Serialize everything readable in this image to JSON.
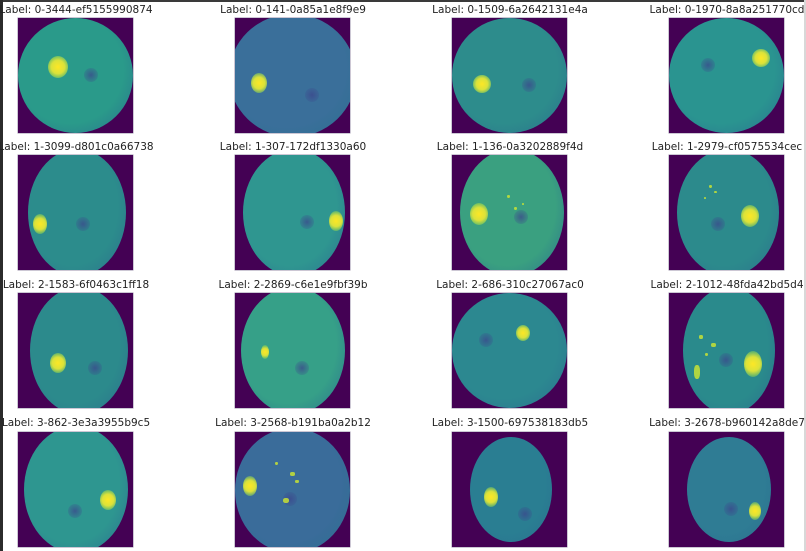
{
  "figure": {
    "rows": 4,
    "cols": 4,
    "colormap": "viridis",
    "background_color": "#440154",
    "title_prefix": "Label: "
  },
  "panels": [
    {
      "label": "Label: 0-3444-ef5155990874",
      "grade": 0,
      "disc_side": "left"
    },
    {
      "label": "Label: 0-141-0a85a1e8f9e9",
      "grade": 0,
      "disc_side": "left"
    },
    {
      "label": "Label: 0-1509-6a2642131e4a",
      "grade": 0,
      "disc_side": "left"
    },
    {
      "label": "Label: 0-1970-8a8a251770cd",
      "grade": 0,
      "disc_side": "right"
    },
    {
      "label": "Label: 1-3099-d801c0a66738",
      "grade": 1,
      "disc_side": "left"
    },
    {
      "label": "Label: 1-307-172df1330a60",
      "grade": 1,
      "disc_side": "right"
    },
    {
      "label": "Label: 1-136-0a3202889f4d",
      "grade": 1,
      "disc_side": "left"
    },
    {
      "label": "Label: 1-2979-cf0575534cec",
      "grade": 1,
      "disc_side": "right"
    },
    {
      "label": "Label: 2-1583-6f0463c1ff18",
      "grade": 2,
      "disc_side": "left"
    },
    {
      "label": "Label: 2-2869-c6e1e9fbf39b",
      "grade": 2,
      "disc_side": "left"
    },
    {
      "label": "Label: 2-686-310c27067ac0",
      "grade": 2,
      "disc_side": "right"
    },
    {
      "label": "Label: 2-1012-48fda42bd5d4",
      "grade": 2,
      "disc_side": "right"
    },
    {
      "label": "Label: 3-862-3e3a3955b9c5",
      "grade": 3,
      "disc_side": "right"
    },
    {
      "label": "Label: 3-2568-b191ba0a2b12",
      "grade": 3,
      "disc_side": "left"
    },
    {
      "label": "Label: 3-1500-697538183db5",
      "grade": 3,
      "disc_side": "left"
    },
    {
      "label": "Label: 3-2678-b960142a8de7",
      "grade": 3,
      "disc_side": "right"
    }
  ]
}
